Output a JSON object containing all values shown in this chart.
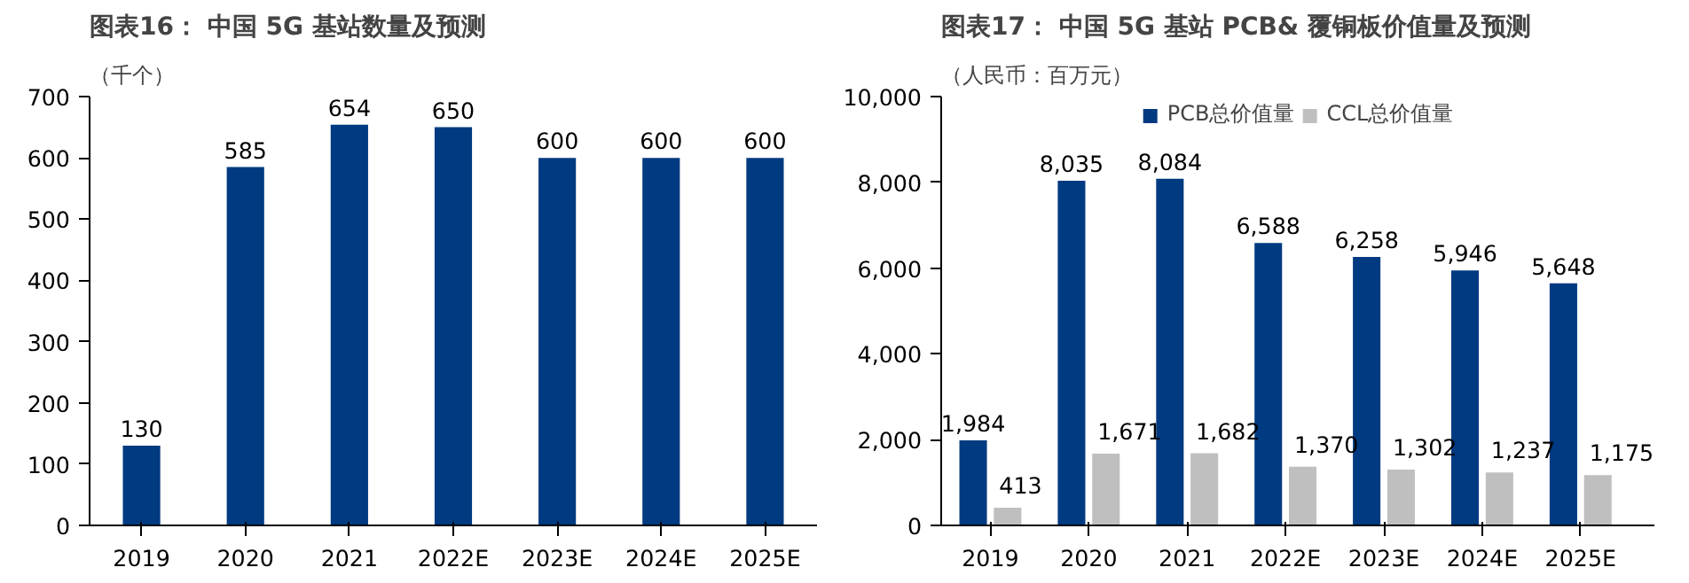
{
  "chart_data": [
    {
      "type": "bar",
      "title": "图表16：  中国 5G 基站数量及预测",
      "ylabel": "（千个）",
      "categories": [
        "2019",
        "2020",
        "2021",
        "2022E",
        "2023E",
        "2024E",
        "2025E"
      ],
      "series": [
        {
          "color": "#003a80",
          "values": [
            130,
            585,
            654,
            650,
            600,
            600,
            600
          ]
        }
      ],
      "ylim": [
        0,
        700
      ],
      "yticks": [
        0,
        100,
        200,
        300,
        400,
        500,
        600,
        700
      ],
      "data_labels": true,
      "grid": false,
      "legend": false
    },
    {
      "type": "bar",
      "title": "图表17：  中国 5G 基站 PCB& 覆铜板价值量及预测",
      "ylabel": "（人民币：百万元）",
      "categories": [
        "2019",
        "2020",
        "2021",
        "2022E",
        "2023E",
        "2024E",
        "2025E"
      ],
      "series": [
        {
          "name": "PCB总价值量",
          "color": "#003a80",
          "values": [
            1984,
            8035,
            8084,
            6588,
            6258,
            5946,
            5648
          ],
          "value_labels": [
            "1,984",
            "8,035",
            "8,084",
            "6,588",
            "6,258",
            "5,946",
            "5,648"
          ]
        },
        {
          "name": "CCL总价值量",
          "color": "#bfbfbf",
          "values": [
            413,
            1671,
            1682,
            1370,
            1302,
            1237,
            1175
          ],
          "value_labels": [
            "413",
            "1,671",
            "1,682",
            "1,370",
            "1,302",
            "1,237",
            "1,175"
          ]
        }
      ],
      "ylim": [
        0,
        10000
      ],
      "yticks": [
        {
          "value": 0,
          "label": "0"
        },
        {
          "value": 2000,
          "label": "2,000"
        },
        {
          "value": 4000,
          "label": "4,000"
        },
        {
          "value": 6000,
          "label": "6,000"
        },
        {
          "value": 8000,
          "label": "8,000"
        },
        {
          "value": 10000,
          "label": "10,000"
        }
      ],
      "grid": false,
      "legend": "top"
    }
  ]
}
